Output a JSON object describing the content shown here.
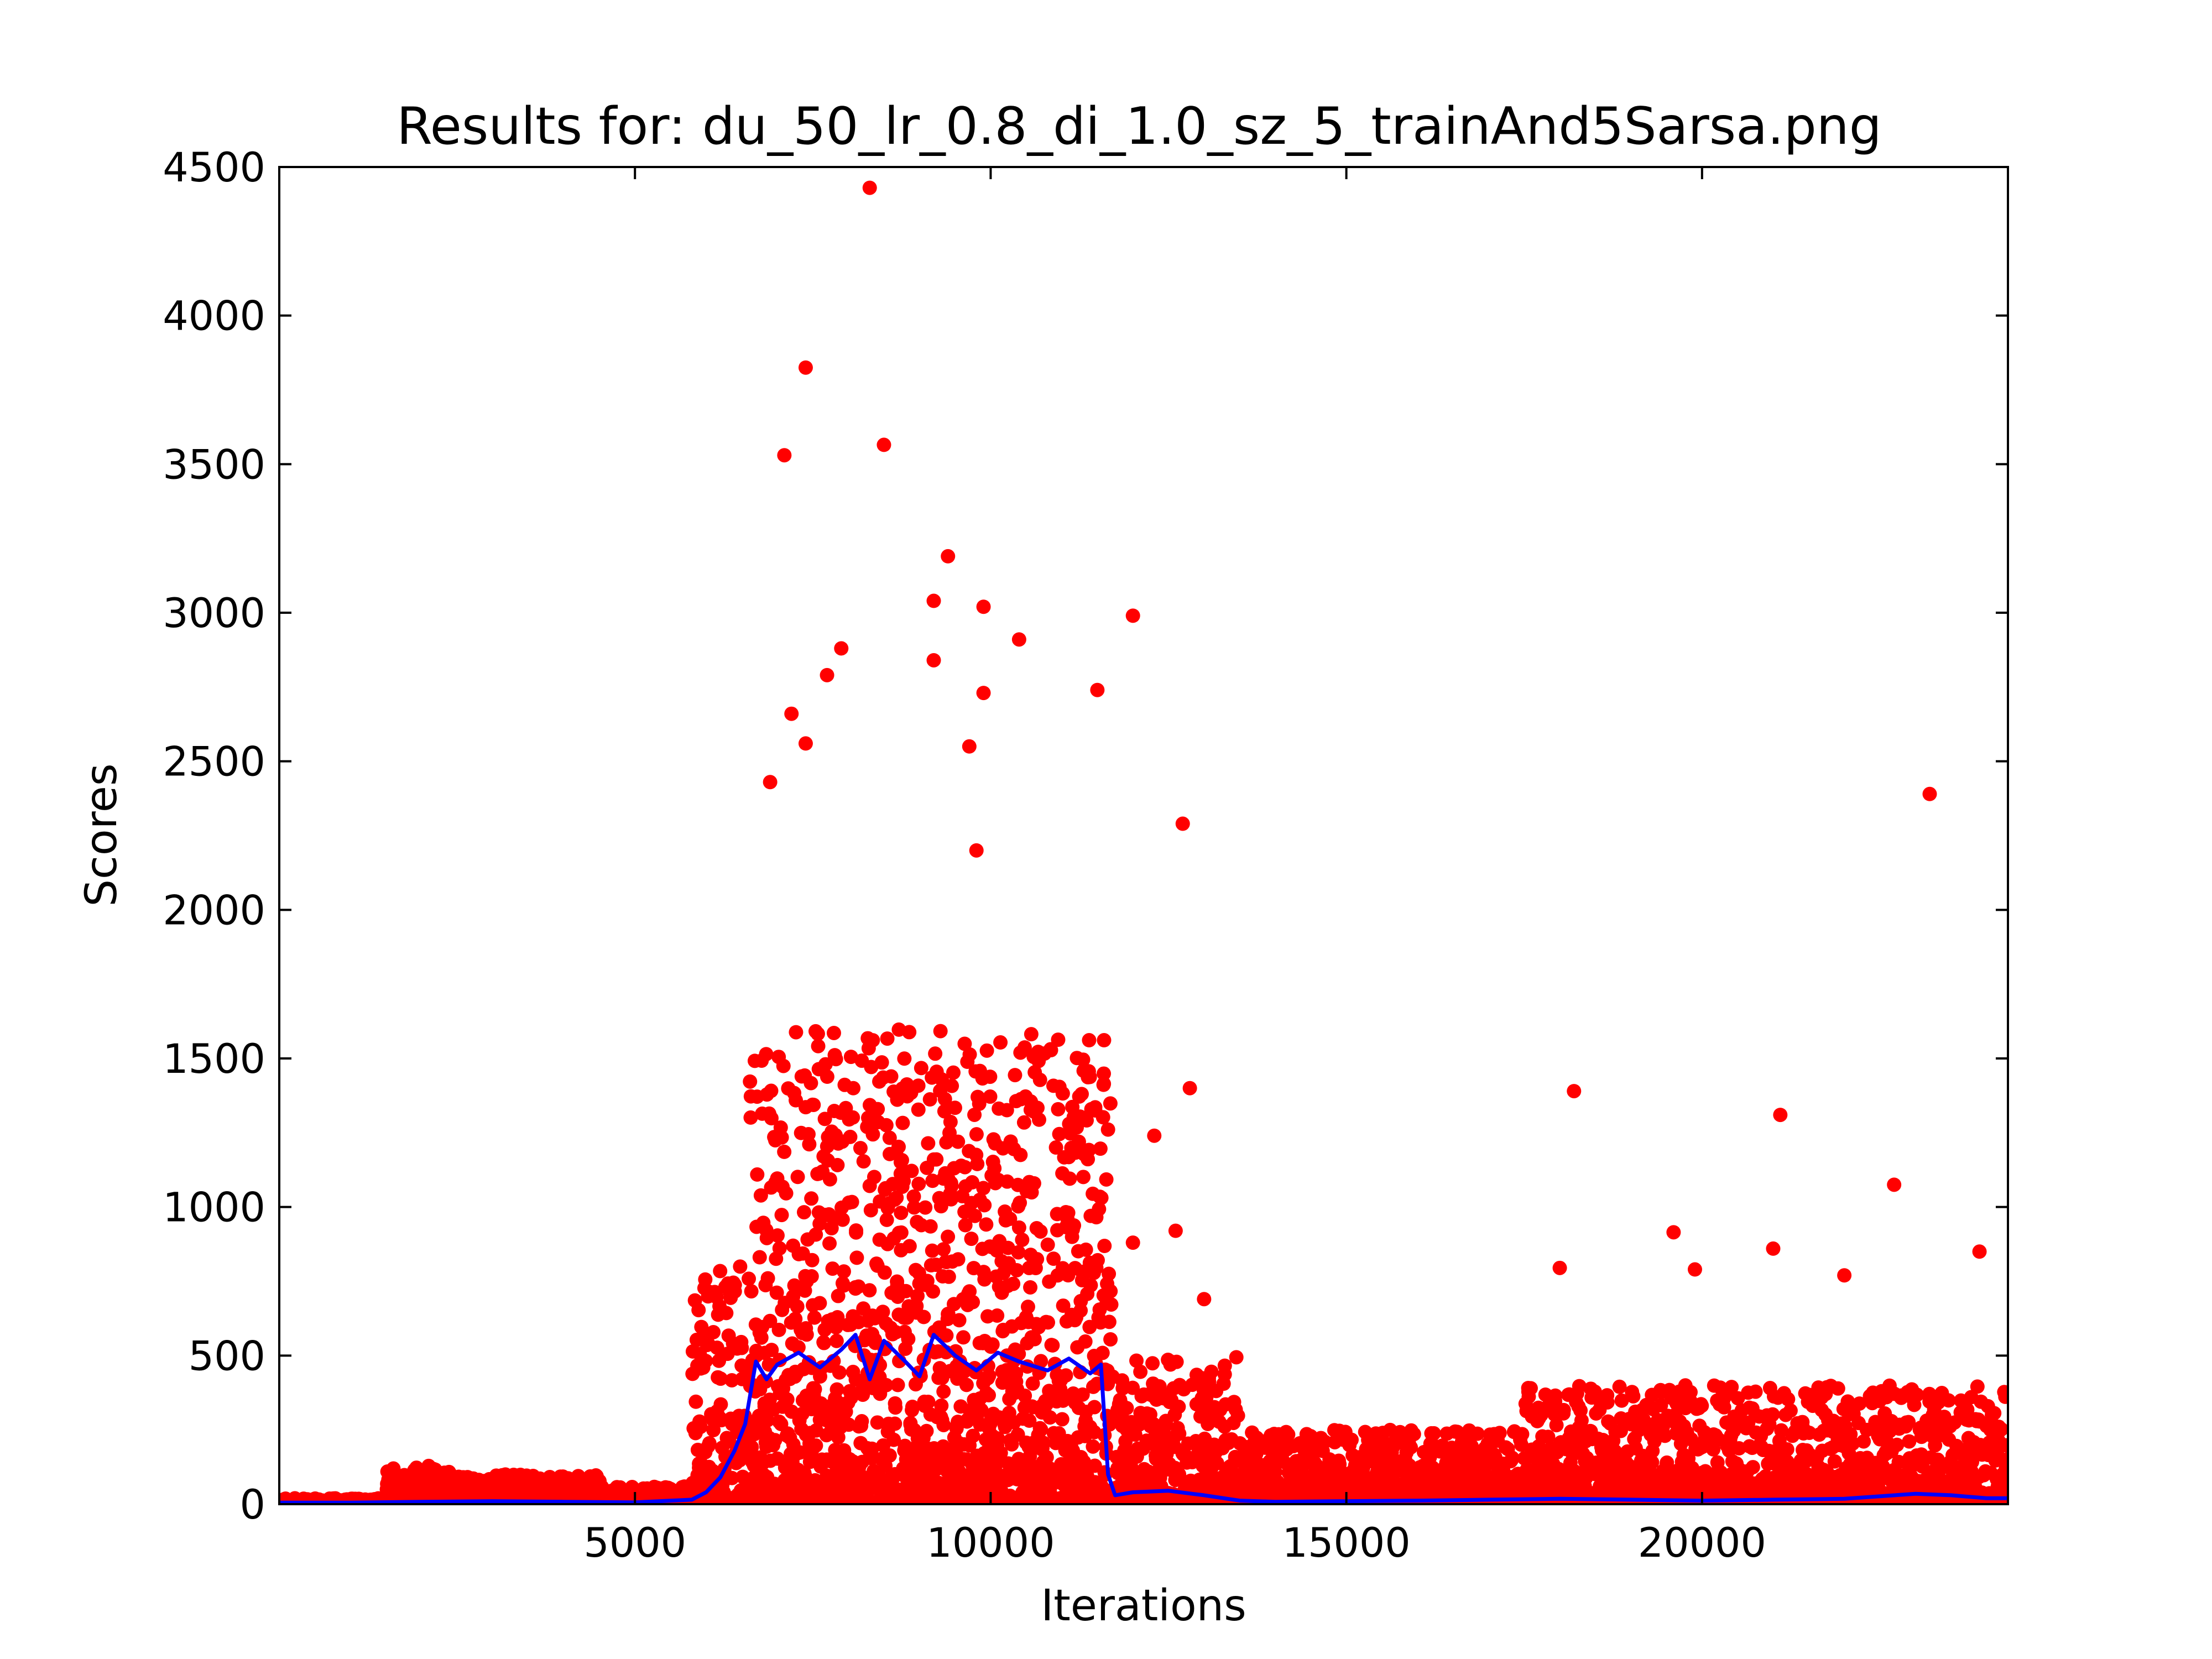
{
  "chart_data": {
    "type": "scatter",
    "title": "Results for: du_50_lr_0.8_di_1.0_sz_5_trainAnd5Sarsa.png",
    "xlabel": "Iterations",
    "ylabel": "Scores",
    "xlim": [
      0,
      24300
    ],
    "ylim": [
      0,
      4500
    ],
    "xticks": [
      5000,
      10000,
      15000,
      20000
    ],
    "yticks": [
      0,
      500,
      1000,
      1500,
      2000,
      2500,
      3000,
      3500,
      4000,
      4500
    ],
    "grid": false,
    "legend": "none",
    "colors": {
      "points": "#ff0000",
      "line": "#0000ff",
      "axes": "#000000"
    },
    "series": [
      {
        "kind": "scatter",
        "approx_total_points": 24300,
        "density_profile": [
          {
            "x_range": [
              0,
              1500
            ],
            "typical_max": 20
          },
          {
            "x_range": [
              1500,
              2500
            ],
            "typical_max": 130
          },
          {
            "x_range": [
              2500,
              4500
            ],
            "typical_max": 100
          },
          {
            "x_range": [
              4500,
              5800
            ],
            "typical_max": 60
          },
          {
            "x_range": [
              5800,
              6600
            ],
            "typical_max": 800
          },
          {
            "x_range": [
              6600,
              11700
            ],
            "typical_max": 1600
          },
          {
            "x_range": [
              11700,
              13500
            ],
            "typical_max": 500
          },
          {
            "x_range": [
              13500,
              17500
            ],
            "typical_max": 250
          },
          {
            "x_range": [
              17500,
              24300
            ],
            "typical_max": 400
          }
        ],
        "outliers": [
          {
            "x": 8300,
            "y": 4430
          },
          {
            "x": 7400,
            "y": 3825
          },
          {
            "x": 8500,
            "y": 3565
          },
          {
            "x": 7100,
            "y": 3530
          },
          {
            "x": 9400,
            "y": 3190
          },
          {
            "x": 9200,
            "y": 3040
          },
          {
            "x": 9900,
            "y": 3020
          },
          {
            "x": 12000,
            "y": 2990
          },
          {
            "x": 10400,
            "y": 2910
          },
          {
            "x": 7900,
            "y": 2880
          },
          {
            "x": 9200,
            "y": 2840
          },
          {
            "x": 11500,
            "y": 2740
          },
          {
            "x": 9900,
            "y": 2730
          },
          {
            "x": 7700,
            "y": 2790
          },
          {
            "x": 7200,
            "y": 2660
          },
          {
            "x": 7400,
            "y": 2560
          },
          {
            "x": 9700,
            "y": 2550
          },
          {
            "x": 6900,
            "y": 2430
          },
          {
            "x": 23200,
            "y": 2390
          },
          {
            "x": 12700,
            "y": 2290
          },
          {
            "x": 9800,
            "y": 2200
          },
          {
            "x": 13000,
            "y": 690
          },
          {
            "x": 12300,
            "y": 1240
          },
          {
            "x": 12800,
            "y": 1400
          },
          {
            "x": 18200,
            "y": 1390
          },
          {
            "x": 21100,
            "y": 1310
          },
          {
            "x": 22700,
            "y": 1075
          },
          {
            "x": 19600,
            "y": 915
          },
          {
            "x": 21000,
            "y": 860
          },
          {
            "x": 23900,
            "y": 850
          },
          {
            "x": 18000,
            "y": 795
          },
          {
            "x": 19900,
            "y": 790
          },
          {
            "x": 22000,
            "y": 770
          },
          {
            "x": 12600,
            "y": 920
          },
          {
            "x": 12000,
            "y": 880
          }
        ]
      },
      {
        "kind": "line",
        "points": [
          [
            0,
            5
          ],
          [
            1000,
            5
          ],
          [
            2000,
            8
          ],
          [
            3000,
            10
          ],
          [
            4000,
            8
          ],
          [
            5000,
            6
          ],
          [
            5800,
            15
          ],
          [
            6000,
            40
          ],
          [
            6200,
            90
          ],
          [
            6400,
            180
          ],
          [
            6550,
            270
          ],
          [
            6700,
            480
          ],
          [
            6850,
            420
          ],
          [
            7000,
            470
          ],
          [
            7300,
            510
          ],
          [
            7600,
            460
          ],
          [
            7900,
            520
          ],
          [
            8100,
            570
          ],
          [
            8300,
            420
          ],
          [
            8500,
            550
          ],
          [
            8800,
            480
          ],
          [
            9000,
            430
          ],
          [
            9200,
            570
          ],
          [
            9500,
            500
          ],
          [
            9800,
            450
          ],
          [
            10100,
            510
          ],
          [
            10400,
            480
          ],
          [
            10800,
            450
          ],
          [
            11100,
            490
          ],
          [
            11400,
            440
          ],
          [
            11550,
            470
          ],
          [
            11650,
            100
          ],
          [
            11750,
            30
          ],
          [
            12000,
            40
          ],
          [
            12500,
            45
          ],
          [
            13000,
            30
          ],
          [
            13500,
            12
          ],
          [
            14000,
            8
          ],
          [
            15000,
            10
          ],
          [
            16000,
            12
          ],
          [
            17000,
            15
          ],
          [
            18000,
            18
          ],
          [
            19000,
            15
          ],
          [
            20000,
            12
          ],
          [
            21000,
            15
          ],
          [
            22000,
            18
          ],
          [
            23000,
            35
          ],
          [
            23500,
            30
          ],
          [
            24000,
            20
          ],
          [
            24300,
            20
          ]
        ]
      }
    ]
  }
}
